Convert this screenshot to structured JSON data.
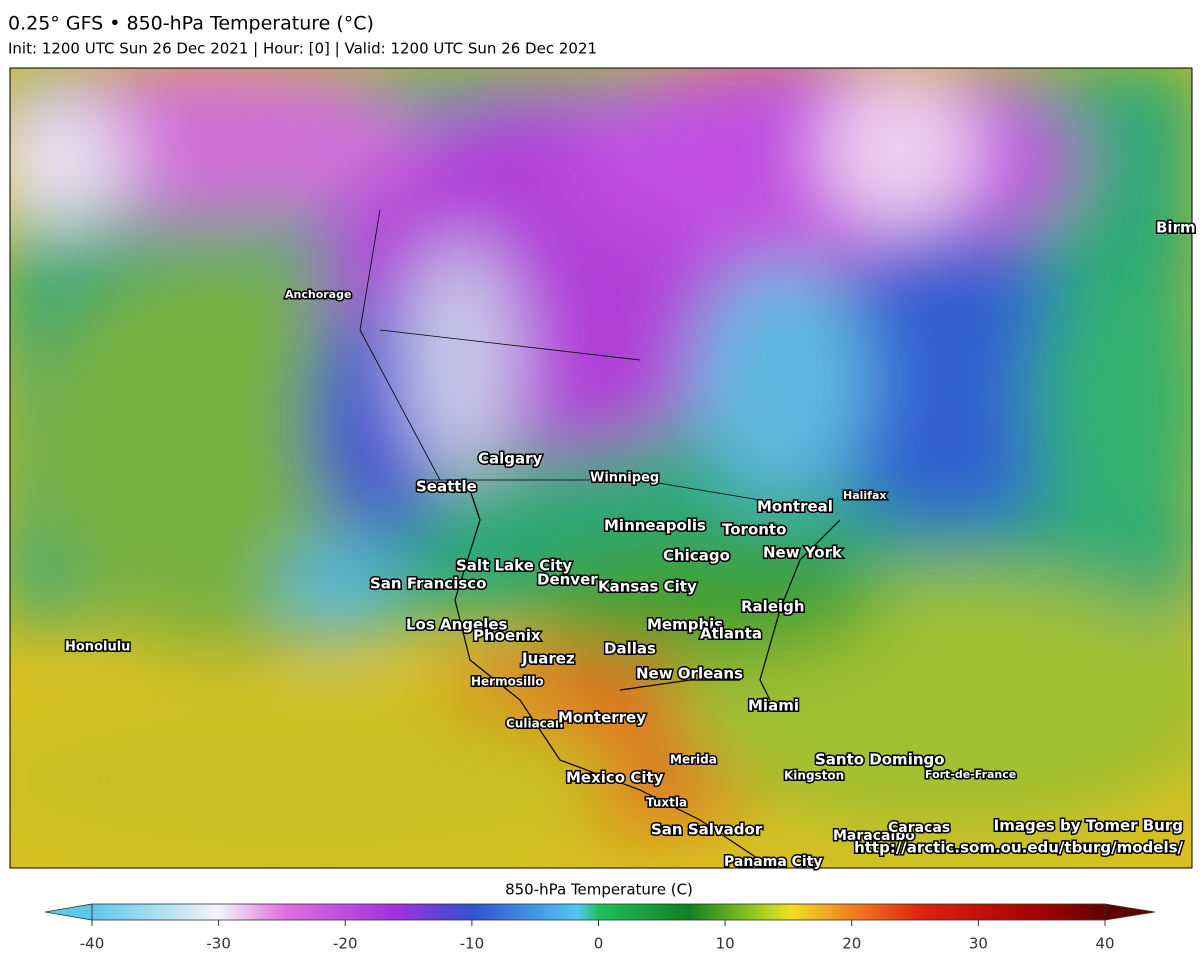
{
  "header": {
    "title": "0.25° GFS • 850-hPa Temperature (°C)",
    "subtitle": "Init: 1200 UTC Sun 26 Dec 2021 | Hour: [0] | Valid: 1200 UTC Sun 26 Dec 2021"
  },
  "map": {
    "cities": [
      "Anchorage",
      "Calgary",
      "Winnipeg",
      "Seattle",
      "Montreal",
      "Halifax",
      "Minneapolis",
      "Toronto",
      "Chicago",
      "New York",
      "Salt Lake City",
      "Denver",
      "Kansas City",
      "San Francisco",
      "Raleigh",
      "Los Angeles",
      "Phoenix",
      "Memphis",
      "Atlanta",
      "Honolulu",
      "Juarez",
      "Dallas",
      "New Orleans",
      "Hermosillo",
      "Miami",
      "Culiacan",
      "Monterrey",
      "Merida",
      "Santo Domingo",
      "Kingston",
      "Fort-de-France",
      "Mexico City",
      "Tuxtla",
      "San Salvador",
      "Maracaibo",
      "Caracas",
      "Panama City",
      "Birm"
    ],
    "credit": [
      "Images by Tomer Burg",
      "http://arctic.som.ou.edu/tburg/models/"
    ]
  },
  "colorbar": {
    "title": "850-hPa Temperature (C)",
    "range": [
      -40,
      40
    ],
    "ticks": [
      -40,
      -30,
      -20,
      -10,
      0,
      10,
      20,
      30,
      40
    ]
  }
}
